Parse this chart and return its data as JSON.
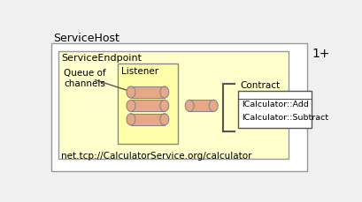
{
  "bg_color": "#f0f0f0",
  "outer_box_color": "#ffffff",
  "outer_box_edge": "#999999",
  "inner_box_color": "#ffffcc",
  "inner_box_edge": "#999999",
  "listener_box_color": "#ffffaa",
  "listener_box_edge": "#888888",
  "contract_box_color": "#ffffff",
  "contract_box_edge": "#555555",
  "cylinder_face_color": "#e8a888",
  "cylinder_edge_color": "#888888",
  "servicehost_label": "ServiceHost",
  "serviceendpoint_label": "ServiceEndpoint",
  "queue_label": "Queue of\nchannels",
  "listener_label": "Listener",
  "contract_label": "Contract",
  "contract_items": [
    "ICalculator::Add",
    "ICalculator::Subtract"
  ],
  "url_label": "net.tcp://CalculatorService.org/calculator",
  "multiplicity_label": "1+",
  "title_fontsize": 9,
  "label_fontsize": 8,
  "small_fontsize": 7.5
}
